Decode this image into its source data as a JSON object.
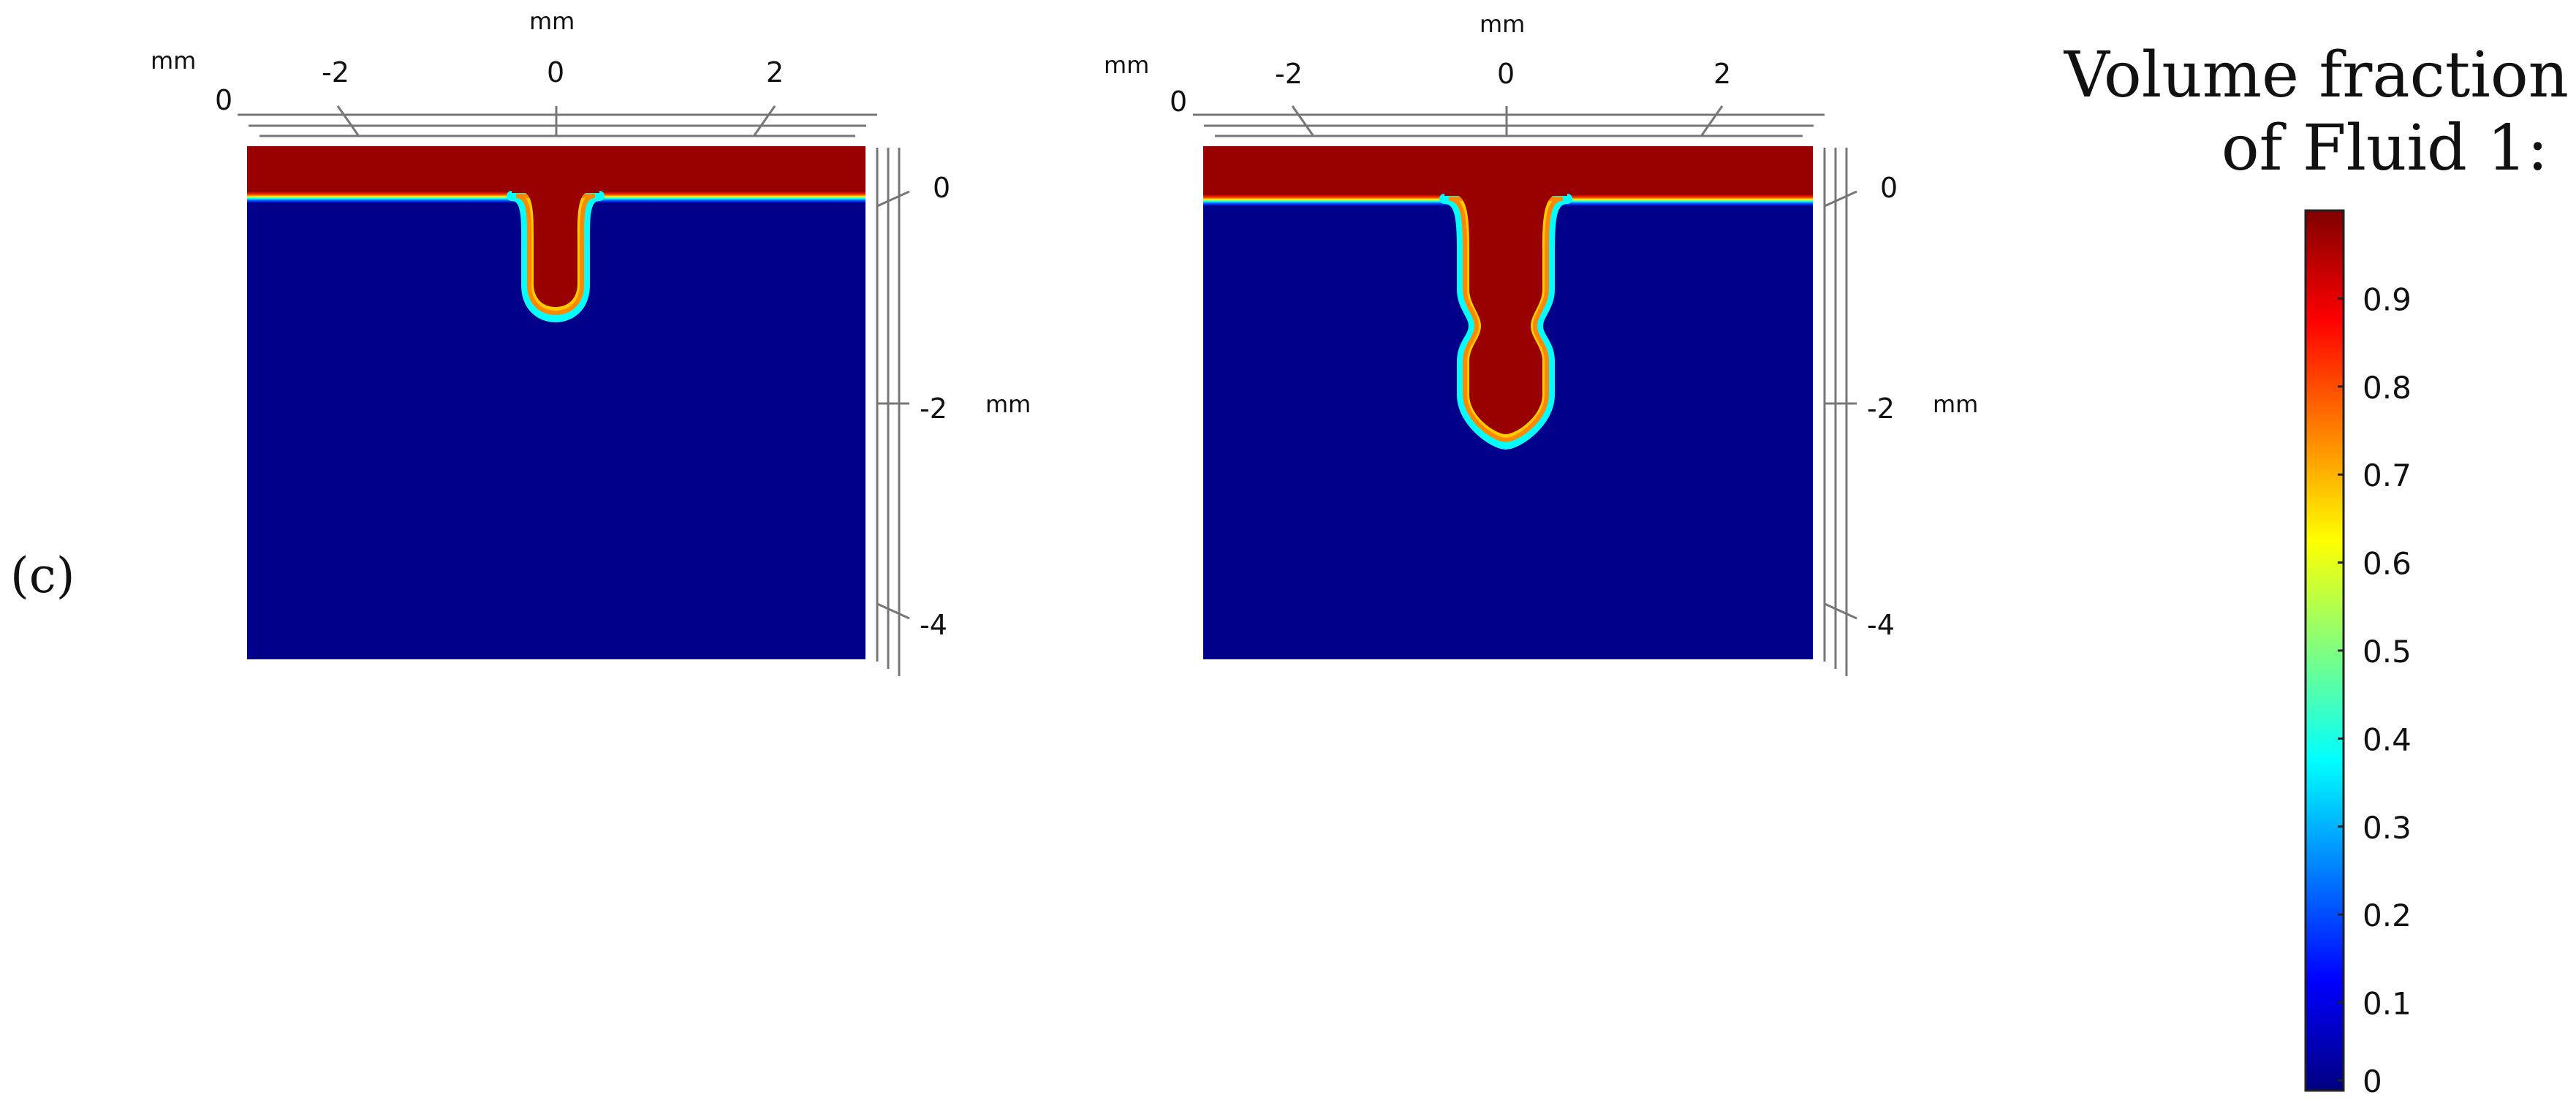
{
  "panel_label": "(c)",
  "colorbar": {
    "title_line1": "Volume fraction",
    "title_line2": "of Fluid 1:",
    "ticks": [
      "0",
      "0.1",
      "0.2",
      "0.3",
      "0.4",
      "0.5",
      "0.6",
      "0.7",
      "0.8",
      "0.9"
    ],
    "range": [
      0,
      1
    ],
    "colormap": [
      "#000080",
      "#0000ff",
      "#00ffff",
      "#ffff00",
      "#ff0000",
      "#800000"
    ]
  },
  "plots": [
    {
      "top_unit": "mm",
      "side_unit": "mm",
      "left_unit": "mm",
      "x_ticks": [
        "-2",
        "0",
        "2"
      ],
      "corner_tick": "0",
      "y_ticks": [
        "0",
        "-2",
        "-4"
      ],
      "fluid_1_color": "#990000",
      "fluid_2_color": "#00008b"
    },
    {
      "top_unit": "mm",
      "side_unit": "mm",
      "left_unit": "mm",
      "x_ticks": [
        "-2",
        "0",
        "2"
      ],
      "corner_tick": "0",
      "y_ticks": [
        "0",
        "-2",
        "-4"
      ],
      "fluid_1_color": "#990000",
      "fluid_2_color": "#00008b"
    }
  ]
}
